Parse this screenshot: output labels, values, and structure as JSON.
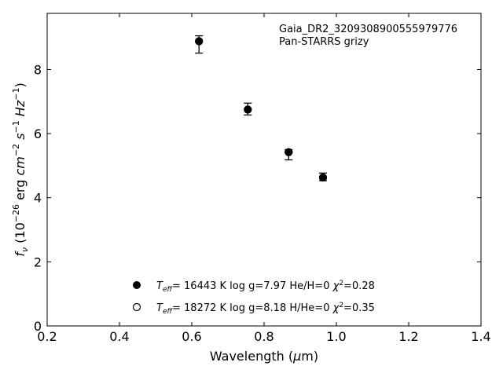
{
  "chart_data": {
    "type": "scatter",
    "xlabel": "Wavelength (µm)",
    "ylabel": "f_ν (10^-26 erg cm^-2 s^-1 Hz^-1)",
    "xlim": [
      0.2,
      1.4
    ],
    "ylim": [
      0,
      9.75
    ],
    "xticks": [
      0.2,
      0.4,
      0.6,
      0.8,
      1.0,
      1.2,
      1.4
    ],
    "xtick_labels": [
      "0.2",
      "0.4",
      "0.6",
      "0.8",
      "1.0",
      "1.2",
      "1.4"
    ],
    "yticks": [
      0,
      2,
      4,
      6,
      8
    ],
    "ytick_labels": [
      "0",
      "2",
      "4",
      "6",
      "8"
    ],
    "grid": false,
    "annotation": {
      "line1": "Gaia_DR2_3209308900555979776",
      "line2": "Pan-STARRS grizy"
    },
    "observed": {
      "x": [
        0.62,
        0.755,
        0.868,
        0.963
      ],
      "y": [
        8.78,
        6.72,
        5.38,
        4.62
      ],
      "yerr_low": [
        0.27,
        0.14,
        0.2,
        0.09
      ],
      "yerr_high": [
        0.27,
        0.23,
        0.12,
        0.15
      ]
    },
    "series": [
      {
        "x": [
          0.62,
          0.755,
          0.868,
          0.963
        ],
        "y": [
          8.88,
          6.75,
          5.42,
          4.63
        ],
        "marker": "filled-circle",
        "color": "#000000"
      },
      {
        "x": [
          0.62,
          0.755,
          0.868,
          0.963
        ],
        "y": [
          8.88,
          6.75,
          5.42,
          4.63
        ],
        "marker": "open-circle",
        "color": "#000000"
      }
    ],
    "legend": {
      "placement": "lower-center",
      "entries": [
        {
          "marker": "filled-circle",
          "teff": "16443",
          "logg": "7.97",
          "comp": "He/H=0",
          "chi2": "0.28"
        },
        {
          "marker": "open-circle",
          "teff": "18272",
          "logg": "8.18",
          "comp": "H/He=0",
          "chi2": "0.35"
        }
      ]
    }
  }
}
